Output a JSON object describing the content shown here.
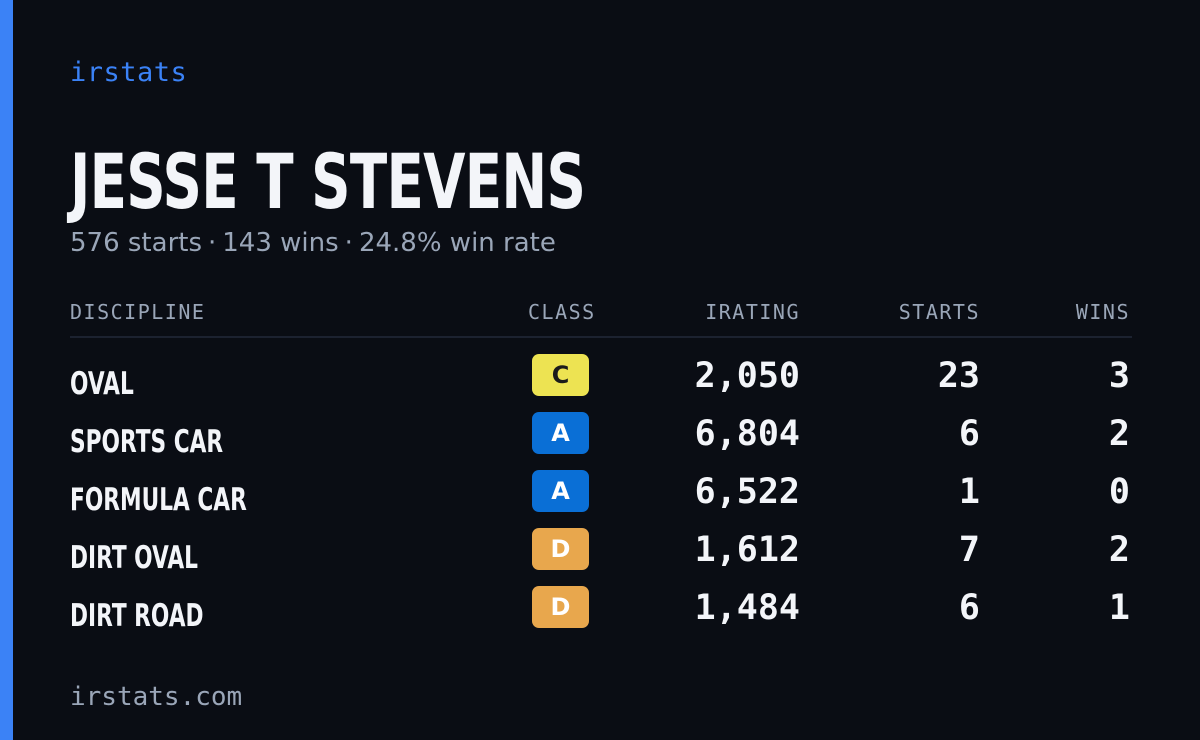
{
  "brand": "irstats",
  "driver": {
    "name": "JESSE T STEVENS",
    "summary": {
      "starts": "576 starts",
      "wins": "143 wins",
      "win_rate": "24.8% win rate",
      "separator": "·"
    }
  },
  "table": {
    "headers": {
      "discipline": "DISCIPLINE",
      "class": "CLASS",
      "irating": "IRATING",
      "starts": "STARTS",
      "wins": "WINS"
    },
    "rows": [
      {
        "discipline": "OVAL",
        "class": "C",
        "irating": "2,050",
        "starts": "23",
        "wins": "3"
      },
      {
        "discipline": "SPORTS CAR",
        "class": "A",
        "irating": "6,804",
        "starts": "6",
        "wins": "2"
      },
      {
        "discipline": "FORMULA CAR",
        "class": "A",
        "irating": "6,522",
        "starts": "1",
        "wins": "0"
      },
      {
        "discipline": "DIRT OVAL",
        "class": "D",
        "irating": "1,612",
        "starts": "7",
        "wins": "2"
      },
      {
        "discipline": "DIRT ROAD",
        "class": "D",
        "irating": "1,484",
        "starts": "6",
        "wins": "1"
      }
    ]
  },
  "class_colors": {
    "A": {
      "bg": "#0a6fd6",
      "fg": "#ffffff"
    },
    "C": {
      "bg": "#ede352",
      "fg": "#1b1b1b"
    },
    "D": {
      "bg": "#e8a74d",
      "fg": "#ffffff"
    }
  },
  "colors": {
    "accent": "#3b82f6",
    "background": "#0a0d14",
    "text": "#f3f5f9",
    "muted": "#9aa6b8"
  },
  "footer": "irstats.com"
}
